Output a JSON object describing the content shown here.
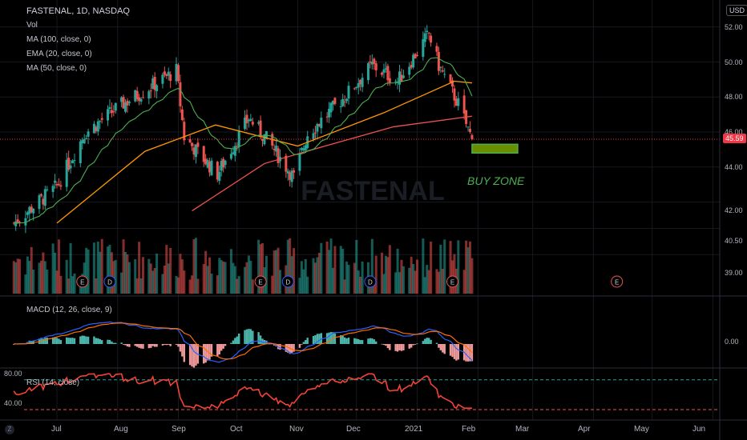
{
  "header": {
    "symbol_line": "FASTENAL, 1D, NASDAQ",
    "currency_button": "USD"
  },
  "legends": {
    "vol": "Vol",
    "ma100": "MA (100, close, 0)",
    "ema20": "EMA (20, close, 0)",
    "ma50": "MA (50, close, 0)",
    "macd": "MACD (12, 26, close, 9)",
    "rsi": "RSI (14, close)"
  },
  "watermark": "FASTENAL",
  "annotation": {
    "text": "BUY ZONE",
    "zone_low": 44.8,
    "zone_high": 45.3
  },
  "colors": {
    "up": "#26a69a",
    "down": "#ef5350",
    "ema20": "#4caf50",
    "ma50": "#ff9800",
    "ma100": "#ef5350",
    "macd_line": "#2962ff",
    "signal_line": "#ff6d00",
    "rsi_line": "#f44336",
    "buy_zone_fill": "#6b8e00",
    "buy_zone_border": "#4caf50",
    "last_price": "#f23645"
  },
  "price_axis": {
    "ticks": [
      "52.00",
      "50.00",
      "48.00",
      "46.00",
      "44.00",
      "42.00",
      "40.50",
      "39.00"
    ],
    "last_price": "45.59"
  },
  "macd_axis": {
    "ticks": [
      "0.00"
    ]
  },
  "rsi_axis": {
    "ticks": [
      "80.00",
      "40.00"
    ]
  },
  "time_axis": {
    "ticks": [
      "Jul",
      "Aug",
      "Sep",
      "Oct",
      "Nov",
      "Dec",
      "2021",
      "Feb",
      "Mar",
      "Apr",
      "May",
      "Jun"
    ]
  },
  "event_markers": {
    "labels": [
      "E",
      "D",
      "E",
      "D",
      "D",
      "E",
      "E"
    ],
    "dates": [
      "2020-07-14",
      "2020-07-28",
      "2020-10-13",
      "2020-10-27",
      "2020-12-08",
      "2021-01-19",
      "2021-04-13"
    ]
  },
  "chart_data": {
    "type": "candlestick",
    "title": "FASTENAL, 1D, NASDAQ",
    "date_range": [
      "2020-06-09",
      "2021-01-29"
    ],
    "ylim": [
      38.5,
      52.4
    ],
    "key_points": [
      {
        "date": "2020-06-09",
        "close": 40.8
      },
      {
        "date": "2020-07-01",
        "close": 42.9
      },
      {
        "date": "2020-07-15",
        "close": 45.9
      },
      {
        "date": "2020-08-01",
        "close": 47.4
      },
      {
        "date": "2020-08-31",
        "close": 49.5
      },
      {
        "date": "2020-09-04",
        "close": 45.7
      },
      {
        "date": "2020-09-21",
        "close": 43.6
      },
      {
        "date": "2020-10-07",
        "close": 46.8
      },
      {
        "date": "2020-10-16",
        "close": 45.6
      },
      {
        "date": "2020-10-30",
        "close": 43.4
      },
      {
        "date": "2020-11-06",
        "close": 45.9
      },
      {
        "date": "2020-11-24",
        "close": 47.9
      },
      {
        "date": "2020-12-09",
        "close": 49.8
      },
      {
        "date": "2020-12-22",
        "close": 48.9
      },
      {
        "date": "2021-01-07",
        "close": 51.6
      },
      {
        "date": "2021-01-12",
        "close": 49.8
      },
      {
        "date": "2021-01-22",
        "close": 47.6
      },
      {
        "date": "2021-01-29",
        "close": 45.59
      }
    ],
    "ma100_points": [
      {
        "date": "2020-09-08",
        "value": 41.5
      },
      {
        "date": "2020-10-15",
        "value": 44.2
      },
      {
        "date": "2020-11-15",
        "value": 45.2
      },
      {
        "date": "2020-12-20",
        "value": 46.3
      },
      {
        "date": "2021-01-29",
        "value": 46.9
      }
    ],
    "ma50_points": [
      {
        "date": "2020-07-01",
        "value": 40.8
      },
      {
        "date": "2020-08-15",
        "value": 44.9
      },
      {
        "date": "2020-09-20",
        "value": 46.4
      },
      {
        "date": "2020-11-01",
        "value": 45.2
      },
      {
        "date": "2020-12-15",
        "value": 47.1
      },
      {
        "date": "2021-01-20",
        "value": 48.9
      },
      {
        "date": "2021-01-29",
        "value": 48.8
      }
    ],
    "rsi_levels": [
      30,
      70
    ]
  }
}
